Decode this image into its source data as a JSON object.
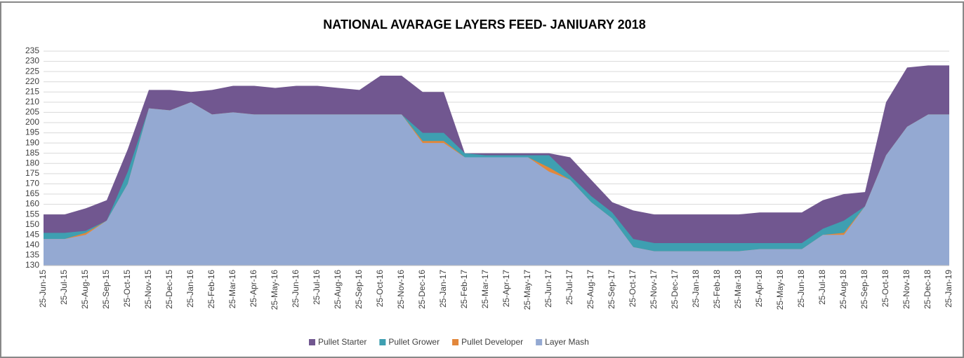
{
  "chart_data": {
    "type": "area",
    "title": "NATIONAL AVARAGE  LAYERS FEED- JANIUARY 2018",
    "categories": [
      "25-Jun-15",
      "25-Jul-15",
      "25-Aug-15",
      "25-Sep-15",
      "25-Oct-15",
      "25-Nov-15",
      "25-Dec-15",
      "25-Jan-16",
      "25-Feb-16",
      "25-Mar-16",
      "25-Apr-16",
      "25-May-16",
      "25-Jun-16",
      "25-Jul-16",
      "25-Aug-16",
      "25-Sep-16",
      "25-Oct-16",
      "25-Nov-16",
      "25-Dec-16",
      "25-Jan-17",
      "25-Feb-17",
      "25-Mar-17",
      "25-Apr-17",
      "25-May-17",
      "25-Jun-17",
      "25-Jul-17",
      "25-Aug-17",
      "25-Sep-17",
      "25-Oct-17",
      "25-Nov-17",
      "25-Dec-17",
      "25-Jan-18",
      "25-Feb-18",
      "25-Mar-18",
      "25-Apr-18",
      "25-May-18",
      "25-Jun-18",
      "25-Jul-18",
      "25-Aug-18",
      "25-Sep-18",
      "25-Oct-18",
      "25-Nov-18",
      "25-Dec-18",
      "25-Jan-19"
    ],
    "series": [
      {
        "name": "Pullet Starter",
        "color": "#715790",
        "values": [
          155,
          155,
          158,
          162,
          187,
          216,
          216,
          215,
          216,
          218,
          218,
          217,
          218,
          218,
          217,
          216,
          223,
          223,
          215,
          215,
          185,
          185,
          185,
          185,
          185,
          183,
          172,
          161,
          157,
          155,
          155,
          155,
          155,
          155,
          156,
          156,
          156,
          162,
          165,
          166,
          210,
          227,
          228,
          228
        ]
      },
      {
        "name": "Pullet Grower",
        "color": "#3e9fb1",
        "values": [
          146,
          146,
          147,
          152,
          176,
          207,
          206,
          210,
          204,
          205,
          204,
          204,
          204,
          204,
          204,
          204,
          204,
          204,
          195,
          195,
          185,
          184,
          184,
          184,
          184,
          174,
          164,
          156,
          143,
          141,
          141,
          141,
          141,
          141,
          141,
          141,
          141,
          148,
          152,
          159,
          184,
          198,
          204,
          204
        ]
      },
      {
        "name": "Pullet Developer",
        "color": "#e2873b",
        "values": [
          143,
          143,
          146,
          152,
          170,
          207,
          206,
          210,
          204,
          205,
          204,
          204,
          204,
          204,
          204,
          204,
          204,
          204,
          191,
          191,
          183,
          183,
          183,
          183,
          178,
          172,
          161,
          153,
          139,
          137,
          137,
          137,
          137,
          137,
          138,
          138,
          138,
          145,
          146,
          159,
          184,
          198,
          204,
          204
        ]
      },
      {
        "name": "Layer Mash",
        "color": "#94a9d2",
        "values": [
          143,
          143,
          145,
          152,
          170,
          207,
          206,
          210,
          204,
          205,
          204,
          204,
          204,
          204,
          204,
          204,
          204,
          204,
          190,
          190,
          183,
          183,
          183,
          183,
          176,
          172,
          161,
          153,
          139,
          137,
          137,
          137,
          137,
          137,
          138,
          138,
          138,
          145,
          145,
          159,
          184,
          198,
          204,
          204
        ]
      }
    ],
    "ylim": [
      130,
      235
    ],
    "yticks": [
      130,
      135,
      140,
      145,
      150,
      155,
      160,
      165,
      170,
      175,
      180,
      185,
      190,
      195,
      200,
      205,
      210,
      215,
      220,
      225,
      230,
      235
    ],
    "grid": true,
    "legend": "bottom"
  }
}
